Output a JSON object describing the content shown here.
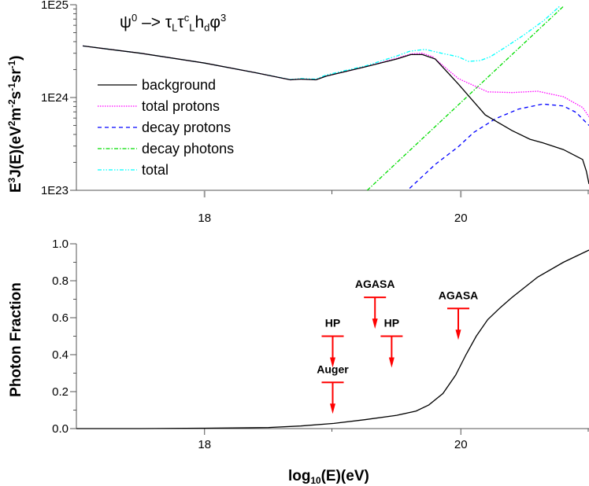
{
  "chart_data": [
    {
      "type": "line",
      "title_parts": [
        {
          "t": "ψ",
          "s": ""
        },
        {
          "t": "0",
          "s": "sup"
        },
        {
          "t": " –> τ",
          "s": ""
        },
        {
          "t": "L",
          "s": "sub"
        },
        {
          "t": "τ",
          "s": ""
        },
        {
          "t": "c",
          "s": "sup"
        },
        {
          "t": "L",
          "s": "sub"
        },
        {
          "t": "h",
          "s": ""
        },
        {
          "t": "d",
          "s": "sub"
        },
        {
          "t": "φ",
          "s": ""
        },
        {
          "t": "3",
          "s": "sup"
        }
      ],
      "ylabel_parts": [
        {
          "t": "E",
          "s": ""
        },
        {
          "t": "3",
          "s": "sup"
        },
        {
          "t": "J(E)(eV",
          "s": ""
        },
        {
          "t": "2",
          "s": "sup"
        },
        {
          "t": "m",
          "s": ""
        },
        {
          "t": "-2",
          "s": "sup"
        },
        {
          "t": "s",
          "s": ""
        },
        {
          "t": "-1",
          "s": "sup"
        },
        {
          "t": "sr",
          "s": ""
        },
        {
          "t": "-1",
          "s": "sup"
        },
        {
          "t": ")",
          "s": ""
        }
      ],
      "xlim": [
        17,
        21
      ],
      "ylim": [
        1e+23,
        1e+25
      ],
      "yscale": "log",
      "x_ticks": [
        "18",
        "20"
      ],
      "y_ticks": [
        "1E25",
        "1E24",
        "1E23"
      ],
      "legend_placement": "left-middle",
      "series": [
        {
          "name": "background",
          "color": "#000000",
          "style": "solid",
          "x": [
            17.05,
            17.5,
            18.0,
            18.4,
            18.67,
            18.75,
            18.87,
            18.95,
            19.26,
            19.5,
            19.61,
            19.7,
            19.8,
            19.98,
            20.19,
            20.4,
            20.54,
            20.64,
            20.8,
            20.95,
            20.98,
            21.0
          ],
          "y": [
            3.6e+24,
            3e+24,
            2.35e+24,
            1.85e+24,
            1.55e+24,
            1.58e+24,
            1.55e+24,
            1.7e+24,
            2.15e+24,
            2.6e+24,
            2.9e+24,
            2.9e+24,
            2.6e+24,
            1.4e+24,
            6.5e+23,
            4.4e+23,
            3.55e+23,
            3.25e+23,
            2.75e+23,
            2.15e+23,
            1.6e+23,
            1.17e+23
          ]
        },
        {
          "name": "total protons",
          "color": "#ff00ff",
          "style": "dotted",
          "x": [
            17.05,
            17.5,
            18.0,
            18.4,
            18.67,
            18.75,
            18.87,
            18.95,
            19.26,
            19.5,
            19.61,
            19.7,
            19.78,
            19.98,
            20.21,
            20.4,
            20.6,
            20.8,
            20.95,
            21.0
          ],
          "y": [
            3.6e+24,
            3e+24,
            2.35e+24,
            1.85e+24,
            1.55e+24,
            1.58e+24,
            1.55e+24,
            1.7e+24,
            2.15e+24,
            2.65e+24,
            2.95e+24,
            3e+24,
            2.75e+24,
            1.6e+24,
            1.15e+24,
            1.13e+24,
            1.17e+24,
            1.02e+24,
            7.8e+23,
            6.2e+23
          ]
        },
        {
          "name": "decay protons",
          "color": "#0000ff",
          "style": "dashed",
          "x": [
            19.6,
            19.8,
            19.98,
            20.1,
            20.27,
            20.45,
            20.64,
            20.8,
            20.9,
            21.0
          ],
          "y": [
            1.05e+23,
            1.9e+23,
            2.95e+23,
            4.2e+23,
            5.9e+23,
            7.5e+23,
            8.5e+23,
            8.1e+23,
            6.9e+23,
            5e+23
          ]
        },
        {
          "name": "decay photons",
          "color": "#00dd00",
          "style": "dashdot",
          "x": [
            19.27,
            20.8
          ],
          "y": [
            1e+23,
            9.6e+24
          ]
        },
        {
          "name": "total",
          "color": "#00ffff",
          "style": "dashdotdot",
          "x": [
            17.05,
            17.5,
            18.0,
            18.4,
            18.67,
            18.75,
            18.87,
            18.95,
            19.26,
            19.5,
            19.6,
            19.72,
            19.85,
            19.98,
            20.06,
            20.15,
            20.23,
            20.35,
            20.49,
            20.65,
            20.77
          ],
          "y": [
            3.6e+24,
            3e+24,
            2.35e+24,
            1.85e+24,
            1.56e+24,
            1.6e+24,
            1.58e+24,
            1.75e+24,
            2.2e+24,
            2.8e+24,
            3.15e+24,
            3.3e+24,
            3e+24,
            2.75e+24,
            2.45e+24,
            2.5e+24,
            2.75e+24,
            3.5e+24,
            4.7e+24,
            6.8e+24,
            9.6e+24
          ]
        }
      ]
    },
    {
      "type": "line",
      "ylabel": "Photon Fraction",
      "xlabel_parts": [
        {
          "t": "log",
          "s": ""
        },
        {
          "t": "10",
          "s": "sub"
        },
        {
          "t": "(E)(eV)",
          "s": ""
        }
      ],
      "xlim": [
        17,
        21
      ],
      "ylim": [
        0,
        1
      ],
      "x_ticks": [
        "18",
        "20"
      ],
      "y_ticks": [
        "0.0",
        "0.2",
        "0.4",
        "0.6",
        "0.8",
        "1.0"
      ],
      "series": [
        {
          "color": "#000000",
          "x": [
            17.0,
            17.5,
            18.0,
            18.5,
            18.75,
            19.01,
            19.25,
            19.5,
            19.65,
            19.75,
            19.86,
            19.96,
            20.04,
            20.12,
            20.21,
            20.3,
            20.4,
            20.6,
            20.8,
            21.0
          ],
          "y": [
            0.0,
            0.0,
            0.002,
            0.006,
            0.014,
            0.028,
            0.048,
            0.072,
            0.095,
            0.128,
            0.19,
            0.29,
            0.4,
            0.5,
            0.59,
            0.65,
            0.71,
            0.82,
            0.9,
            0.966
          ]
        }
      ],
      "limits": [
        {
          "label": "HP",
          "x": 19.0,
          "y": 0.5,
          "color": "#ff0000"
        },
        {
          "label": "Auger",
          "x": 19.0,
          "y": 0.25,
          "color": "#ff0000"
        },
        {
          "label": "AGASA",
          "x": 19.33,
          "y": 0.71,
          "color": "#ff0000"
        },
        {
          "label": "HP",
          "x": 19.46,
          "y": 0.5,
          "color": "#ff0000"
        },
        {
          "label": "AGASA",
          "x": 19.98,
          "y": 0.65,
          "color": "#ff0000"
        }
      ]
    }
  ]
}
